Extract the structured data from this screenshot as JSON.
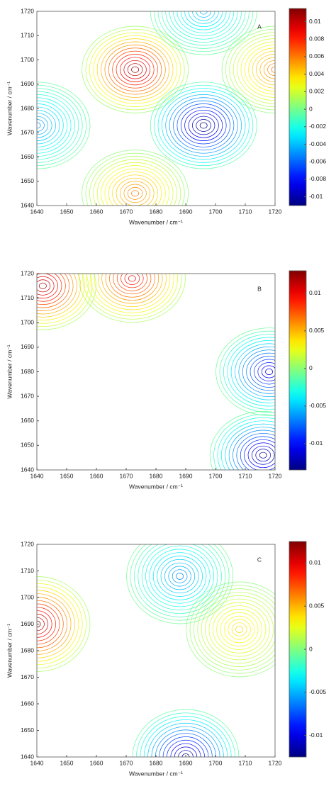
{
  "chart_data": [
    {
      "type": "contour",
      "label": "A",
      "xlabel": "Wavenumber / cm⁻¹",
      "ylabel": "Wavenumber / cm⁻¹",
      "xlim": [
        1640,
        1720
      ],
      "ylim": [
        1640,
        1720
      ],
      "xticks": [
        1640,
        1650,
        1660,
        1670,
        1680,
        1690,
        1700,
        1710,
        1720
      ],
      "yticks": [
        1640,
        1650,
        1660,
        1670,
        1680,
        1690,
        1700,
        1710,
        1720
      ],
      "colorbar": {
        "lim": [
          -0.011,
          0.0115
        ],
        "ticks": [
          0.01,
          0.008,
          0.006,
          0.004,
          0.002,
          0,
          -0.002,
          -0.004,
          -0.006,
          -0.008,
          -0.01
        ]
      },
      "peaks": [
        {
          "x": 1673,
          "y": 1696,
          "value": 0.011
        },
        {
          "x": 1696,
          "y": 1673,
          "value": -0.011
        },
        {
          "x": 1640,
          "y": 1673,
          "value": -0.005
        },
        {
          "x": 1673,
          "y": 1645,
          "value": 0.006
        },
        {
          "x": 1720,
          "y": 1696,
          "value": 0.006
        },
        {
          "x": 1696,
          "y": 1720,
          "value": -0.004
        }
      ]
    },
    {
      "type": "contour",
      "label": "B",
      "xlabel": "Wavenumber / cm⁻¹",
      "ylabel": "Wavenumber / cm⁻¹",
      "xlim": [
        1640,
        1720
      ],
      "ylim": [
        1640,
        1720
      ],
      "xticks": [
        1640,
        1650,
        1660,
        1670,
        1680,
        1690,
        1700,
        1710,
        1720
      ],
      "yticks": [
        1640,
        1650,
        1660,
        1670,
        1680,
        1690,
        1700,
        1710,
        1720
      ],
      "colorbar": {
        "lim": [
          -0.0135,
          0.013
        ],
        "ticks": [
          0.01,
          0.005,
          0,
          -0.005,
          -0.01
        ]
      },
      "peaks": [
        {
          "x": 1672,
          "y": 1718,
          "value": 0.01
        },
        {
          "x": 1642,
          "y": 1715,
          "value": 0.012
        },
        {
          "x": 1718,
          "y": 1680,
          "value": -0.011
        },
        {
          "x": 1716,
          "y": 1646,
          "value": -0.013
        }
      ]
    },
    {
      "type": "contour",
      "label": "C",
      "xlabel": "Wavenumber / cm⁻¹",
      "ylabel": "Wavenumber / cm⁻¹",
      "xlim": [
        1640,
        1720
      ],
      "ylim": [
        1640,
        1720
      ],
      "xticks": [
        1640,
        1650,
        1660,
        1670,
        1680,
        1690,
        1700,
        1710,
        1720
      ],
      "yticks": [
        1640,
        1650,
        1660,
        1670,
        1680,
        1690,
        1700,
        1710,
        1720
      ],
      "colorbar": {
        "lim": [
          -0.0125,
          0.0125
        ],
        "ticks": [
          0.01,
          0.005,
          0,
          -0.005,
          -0.01
        ]
      },
      "peaks": [
        {
          "x": 1640,
          "y": 1690,
          "value": 0.012
        },
        {
          "x": 1688,
          "y": 1708,
          "value": -0.006
        },
        {
          "x": 1690,
          "y": 1640,
          "value": -0.012
        },
        {
          "x": 1708,
          "y": 1688,
          "value": 0.004
        }
      ]
    }
  ]
}
